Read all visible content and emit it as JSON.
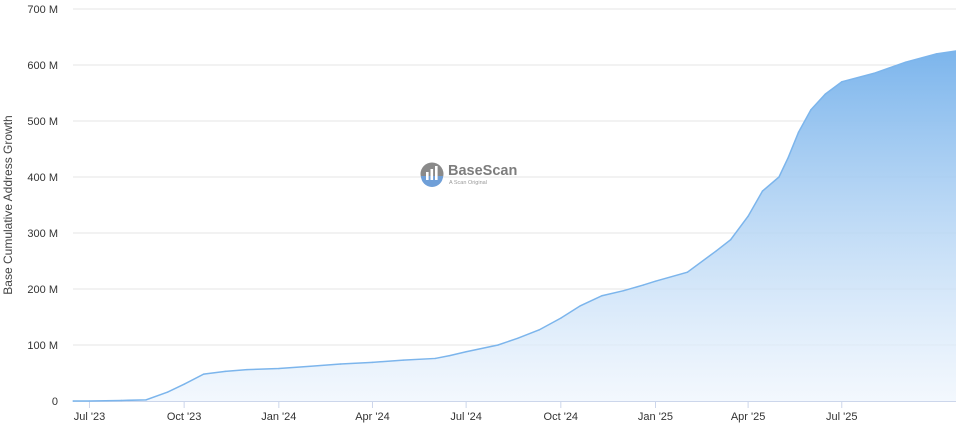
{
  "watermark": {
    "brand": "BaseScan",
    "tagline": "A Scan Original"
  },
  "chart_data": {
    "type": "area",
    "title": "",
    "xlabel": "",
    "ylabel": "Base Cumulative Address Growth",
    "ylim": [
      0,
      700
    ],
    "y_unit": "M",
    "y_ticks": [
      0,
      100,
      200,
      300,
      400,
      500,
      600,
      700
    ],
    "y_tick_labels": [
      "0",
      "100 M",
      "200 M",
      "300 M",
      "400 M",
      "500 M",
      "600 M",
      "700 M"
    ],
    "x_start": "2023-06-15",
    "x_end": "2025-10-20",
    "x_ticks": [
      {
        "date": "2023-07-01",
        "label": "Jul '23"
      },
      {
        "date": "2023-10-01",
        "label": "Oct '23"
      },
      {
        "date": "2024-01-01",
        "label": "Jan '24"
      },
      {
        "date": "2024-04-01",
        "label": "Apr '24"
      },
      {
        "date": "2024-07-01",
        "label": "Jul '24"
      },
      {
        "date": "2024-10-01",
        "label": "Oct '24"
      },
      {
        "date": "2025-01-01",
        "label": "Jan '25"
      },
      {
        "date": "2025-04-01",
        "label": "Apr '25"
      },
      {
        "date": "2025-07-01",
        "label": "Jul '25"
      }
    ],
    "grid": true,
    "legend": "none",
    "colors": {
      "line": "#7cb5ec",
      "fill_top": "#7cb5ec",
      "fill_bottom": "#eef5fd",
      "grid": "#e6e6e6",
      "axis_text": "#333333"
    },
    "series": [
      {
        "x": [
          "2023-06-15",
          "2023-07-01",
          "2023-08-01",
          "2023-08-25",
          "2023-09-15",
          "2023-10-01",
          "2023-10-20",
          "2023-11-10",
          "2023-12-01",
          "2024-01-01",
          "2024-02-01",
          "2024-03-01",
          "2024-04-01",
          "2024-05-01",
          "2024-06-01",
          "2024-06-15",
          "2024-07-01",
          "2024-08-01",
          "2024-08-20",
          "2024-09-10",
          "2024-10-01",
          "2024-10-20",
          "2024-11-10",
          "2024-12-01",
          "2024-12-20",
          "2025-01-01",
          "2025-02-01",
          "2025-03-01",
          "2025-03-15",
          "2025-04-01",
          "2025-04-15",
          "2025-05-01",
          "2025-05-10",
          "2025-05-20",
          "2025-06-01",
          "2025-06-15",
          "2025-07-01",
          "2025-08-01",
          "2025-09-01",
          "2025-10-01",
          "2025-10-20"
        ],
        "y": [
          0,
          0,
          1,
          2,
          16,
          30,
          48,
          53,
          56,
          58,
          62,
          66,
          69,
          73,
          76,
          81,
          88,
          100,
          112,
          127,
          148,
          170,
          188,
          197,
          207,
          214,
          230,
          268,
          288,
          330,
          375,
          400,
          435,
          480,
          520,
          548,
          570,
          585,
          605,
          620,
          625
        ]
      }
    ]
  }
}
